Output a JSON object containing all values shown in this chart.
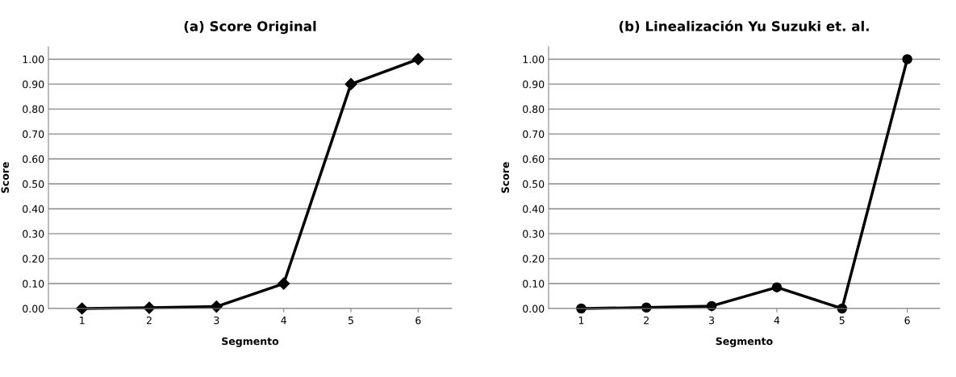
{
  "chart_data": [
    {
      "type": "line",
      "title": "(a) Score Original",
      "xlabel": "Segmento",
      "ylabel": "Score",
      "categories": [
        "1",
        "2",
        "3",
        "4",
        "5",
        "6"
      ],
      "series": [
        {
          "color": "#000000",
          "values": [
            0,
            0.003,
            0.008,
            0.1,
            0.9,
            1.0
          ]
        }
      ],
      "ylim": [
        0,
        1.05
      ],
      "yticks": [
        {
          "value": 0,
          "label": "0.00"
        },
        {
          "value": 0.1,
          "label": "0.10"
        },
        {
          "value": 0.2,
          "label": "0.20"
        },
        {
          "value": 0.3,
          "label": "0.30"
        },
        {
          "value": 0.4,
          "label": "0.40"
        },
        {
          "value": 0.5,
          "label": "0.50"
        },
        {
          "value": 0.6,
          "label": "0.60"
        },
        {
          "value": 0.7,
          "label": "0.70"
        },
        {
          "value": 0.8,
          "label": "0.80"
        },
        {
          "value": 0.9,
          "label": "0.90"
        },
        {
          "value": 1.0,
          "label": "1.00"
        }
      ],
      "grid": "y",
      "marker": "diamond",
      "line_style": "solid"
    },
    {
      "type": "line",
      "title": "(b) Linealización Yu Suzuki et. al.",
      "xlabel": "Segmento",
      "ylabel": "Score",
      "categories": [
        "1",
        "2",
        "3",
        "4",
        "5",
        "6"
      ],
      "series": [
        {
          "color": "#000000",
          "values": [
            0,
            0.004,
            0.01,
            0.085,
            0,
            1.0
          ]
        }
      ],
      "ylim": [
        0,
        1.05
      ],
      "yticks": [
        {
          "value": 0,
          "label": "0.00"
        },
        {
          "value": 0.1,
          "label": "0.10"
        },
        {
          "value": 0.2,
          "label": "0.20"
        },
        {
          "value": 0.3,
          "label": "0.30"
        },
        {
          "value": 0.4,
          "label": "0.40"
        },
        {
          "value": 0.5,
          "label": "0.50"
        },
        {
          "value": 0.6,
          "label": "0.60"
        },
        {
          "value": 0.7,
          "label": "0.70"
        },
        {
          "value": 0.8,
          "label": "0.80"
        },
        {
          "value": 0.9,
          "label": "0.90"
        },
        {
          "value": 1.0,
          "label": "1.00"
        }
      ],
      "grid": "y",
      "marker": "circle",
      "line_style": "solid"
    }
  ]
}
